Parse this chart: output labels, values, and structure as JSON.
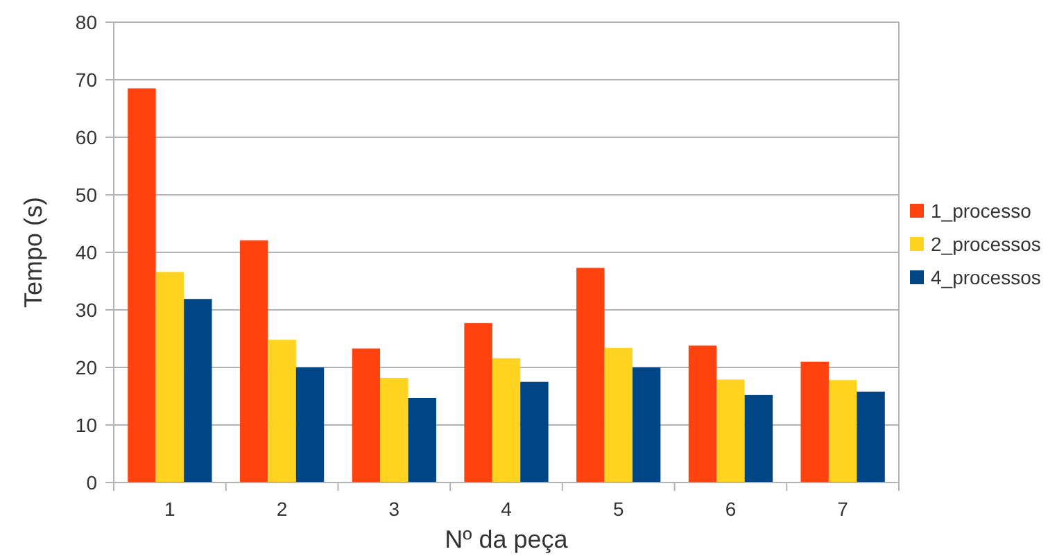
{
  "chart_data": {
    "type": "bar",
    "xlabel": "Nº da peça",
    "ylabel": "Tempo (s)",
    "categories": [
      "1",
      "2",
      "3",
      "4",
      "5",
      "6",
      "7"
    ],
    "series": [
      {
        "name": "1_processo",
        "color": "#ff420e",
        "values": [
          68.5,
          42.1,
          23.3,
          27.7,
          37.3,
          23.8,
          21.0
        ]
      },
      {
        "name": "2_processos",
        "color": "#ffd320",
        "values": [
          36.6,
          24.8,
          18.2,
          21.6,
          23.4,
          17.9,
          17.8
        ]
      },
      {
        "name": "4_processos",
        "color": "#004586",
        "values": [
          31.9,
          20.0,
          14.7,
          17.5,
          20.0,
          15.2,
          15.8
        ]
      }
    ],
    "ylim": [
      0,
      80
    ],
    "yticks": [
      0,
      10,
      20,
      30,
      40,
      50,
      60,
      70,
      80
    ],
    "grid": "y",
    "legend": "right"
  }
}
